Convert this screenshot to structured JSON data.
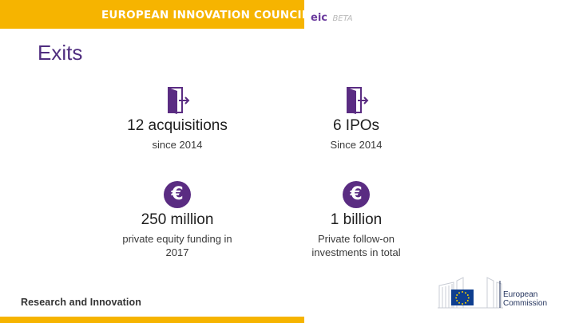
{
  "header": {
    "council_name": "EUROPEAN INNOVATION COUNCIL",
    "brand": "eic",
    "brand_badge": "BETA",
    "bar_color": "#f6b400",
    "brand_color": "#6b3b9e"
  },
  "page": {
    "title": "Exits",
    "title_color": "#4f2d7f"
  },
  "stats": [
    {
      "icon": "exit-door-icon",
      "value": "12 acquisitions",
      "desc_line1": "since 2014",
      "desc_line2": ""
    },
    {
      "icon": "exit-door-icon",
      "value": "6 IPOs",
      "desc_line1": "Since 2014",
      "desc_line2": ""
    },
    {
      "icon": "euro-icon",
      "value": "250 million",
      "desc_line1": "private equity funding in",
      "desc_line2": "2017"
    },
    {
      "icon": "euro-icon",
      "value": "1 billion",
      "desc_line1": "Private follow-on",
      "desc_line2": "investments in total"
    }
  ],
  "icon_color": "#5a2c82",
  "footer": {
    "text": "Research and Innovation",
    "logo_line1": "European",
    "logo_line2": "Commission"
  }
}
